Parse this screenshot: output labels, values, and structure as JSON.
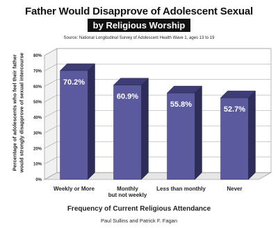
{
  "chart_data": {
    "type": "bar",
    "title": "Father Would Disapprove of Adolescent Sexual Intercourse",
    "subtitle": "by Religious Worship",
    "source": "Source: National Longitudinal Survey of Adolescent Health Wave 1, ages 13 to 19",
    "xlabel": "Frequency of Current Religious Attendance",
    "ylabel": "Percentage of adolescents who feel their father would strongly disapprove of sexual intercourse",
    "categories": [
      "Weekly or More",
      "Monthly\nbut not weekly",
      "Less than monthly",
      "Never"
    ],
    "values": [
      70.2,
      60.9,
      55.8,
      52.7
    ],
    "data_labels": [
      "70.2%",
      "60.9%",
      "55.8%",
      "52.7%"
    ],
    "yticks": [
      "0%",
      "10%",
      "20%",
      "30%",
      "40%",
      "50%",
      "60%",
      "70%",
      "80%"
    ],
    "ylim": [
      0,
      80
    ],
    "grid": true,
    "bar_color": "#5b5a9e",
    "bar_side_color": "#2e2d5a",
    "bar_top_color": "#3d3c75",
    "authors": "Paul Sullins and Patrick F. Fagan"
  }
}
